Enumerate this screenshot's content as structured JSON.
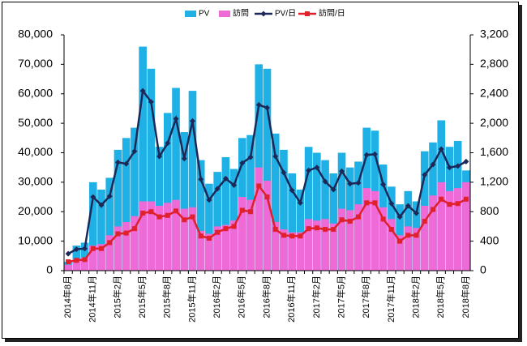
{
  "chart_data": {
    "type": "bar_line",
    "categories": [
      "2014年8月",
      null,
      null,
      "2014年11月",
      null,
      null,
      "2015年2月",
      null,
      null,
      "2015年5月",
      null,
      null,
      "2015年8月",
      null,
      null,
      "2015年11月",
      null,
      null,
      "2016年2月",
      null,
      null,
      "2016年5月",
      null,
      null,
      "2016年8月",
      null,
      null,
      "2016年11月",
      null,
      null,
      "2017年2月",
      null,
      null,
      "2017年5月",
      null,
      null,
      "2017年8月",
      null,
      null,
      "2017年11月",
      null,
      null,
      "2018年2月",
      null,
      null,
      "2018年5月",
      null,
      null,
      "2018年8月"
    ],
    "series": [
      {
        "name": "PV",
        "color": "#1fb1e6",
        "kind": "bar",
        "values": [
          3000,
          8500,
          9500,
          30000,
          27500,
          31500,
          41000,
          45000,
          48500,
          76000,
          68500,
          42000,
          53500,
          62000,
          47000,
          61000,
          37500,
          29500,
          33500,
          38500,
          34500,
          45000,
          46000,
          70000,
          68500,
          46500,
          41000,
          33000,
          27500,
          42000,
          40000,
          37500,
          33000,
          40000,
          35000,
          37000,
          48500,
          47500,
          36000,
          28500,
          22500,
          27000,
          23500,
          40500,
          43500,
          51000,
          42000,
          44000,
          34000
        ]
      },
      {
        "name": "訪問",
        "color": "#ee6ad6",
        "kind": "bar",
        "values": [
          2000,
          4000,
          4500,
          8500,
          9000,
          12000,
          15000,
          16500,
          18500,
          23500,
          23500,
          22000,
          23000,
          24000,
          21000,
          21500,
          13500,
          12500,
          15000,
          15500,
          17000,
          25000,
          24000,
          35000,
          30500,
          16500,
          14000,
          13000,
          13000,
          17500,
          17000,
          17500,
          16000,
          21000,
          20500,
          22500,
          28000,
          27000,
          21500,
          17500,
          12000,
          15000,
          14500,
          22000,
          25500,
          30000,
          27000,
          28000,
          30000
        ]
      },
      {
        "name": "PV/日",
        "color": "#1c2858",
        "kind": "line",
        "marker": "diamond",
        "axis": "y2",
        "values": [
          230,
          290,
          300,
          1000,
          890,
          1010,
          1470,
          1450,
          1620,
          2440,
          2290,
          1550,
          1730,
          2060,
          1520,
          2030,
          1240,
          960,
          1110,
          1250,
          1160,
          1460,
          1540,
          2250,
          2210,
          1550,
          1330,
          1090,
          920,
          1360,
          1400,
          1210,
          1100,
          1350,
          1180,
          1190,
          1570,
          1580,
          1170,
          910,
          730,
          880,
          780,
          1300,
          1440,
          1650,
          1400,
          1420,
          1480
        ]
      },
      {
        "name": "訪問/日",
        "color": "#e0202a",
        "kind": "line",
        "marker": "square",
        "axis": "y2",
        "values": [
          120,
          140,
          150,
          300,
          300,
          380,
          500,
          510,
          570,
          780,
          800,
          730,
          750,
          810,
          690,
          730,
          470,
          440,
          520,
          570,
          600,
          820,
          800,
          1150,
          1000,
          560,
          480,
          470,
          470,
          570,
          580,
          560,
          560,
          690,
          670,
          730,
          920,
          920,
          700,
          560,
          400,
          480,
          480,
          670,
          830,
          970,
          900,
          910,
          970
        ]
      }
    ],
    "ylim": [
      0,
      80000
    ],
    "yticks": [
      0,
      {
        "value": 10000,
        "label": "10,000"
      },
      {
        "value": 20000,
        "label": "20,000"
      },
      {
        "value": 30000,
        "label": "30,000"
      },
      {
        "value": 40000,
        "label": "40,000"
      },
      {
        "value": 50000,
        "label": "50,000"
      },
      {
        "value": 60000,
        "label": "60,000"
      },
      {
        "value": 70000,
        "label": "70,000"
      },
      {
        "value": 80000,
        "label": "80,000"
      }
    ],
    "y2lim": [
      0,
      3200
    ],
    "y2ticks": [
      0,
      400,
      800,
      {
        "value": 1200,
        "label": "1,200"
      },
      {
        "value": 1600,
        "label": "1,600"
      },
      {
        "value": 2000,
        "label": "2,000"
      },
      {
        "value": 2400,
        "label": "2,400"
      },
      {
        "value": 2800,
        "label": "2,800"
      },
      {
        "value": 3200,
        "label": "3,200"
      }
    ],
    "grid": false,
    "legend": "top"
  }
}
